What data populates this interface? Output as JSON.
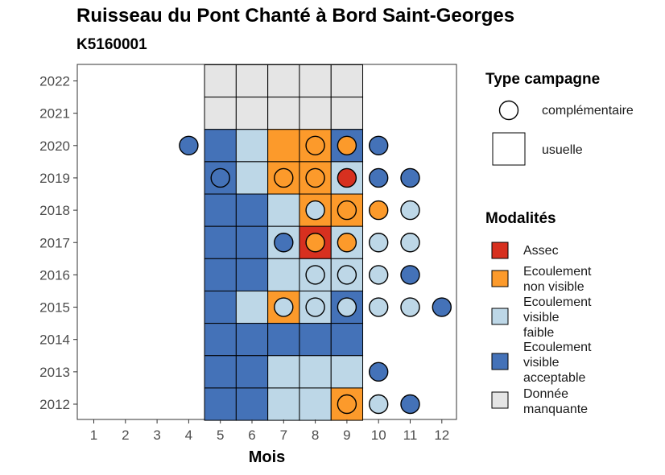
{
  "chart_data": {
    "type": "heatmap",
    "title": "Ruisseau du Pont Chanté à Bord Saint-Georges",
    "subtitle": "K5160001",
    "xlabel": "Mois",
    "ylabel": "",
    "x_ticks": [
      "1",
      "2",
      "3",
      "4",
      "5",
      "6",
      "7",
      "8",
      "9",
      "10",
      "11",
      "12"
    ],
    "y_ticks": [
      "2012",
      "2013",
      "2014",
      "2015",
      "2016",
      "2017",
      "2018",
      "2019",
      "2020",
      "2021",
      "2022"
    ],
    "colors": {
      "assec": "#d7301f",
      "nonvisible": "#fc9a2b",
      "faible": "#bdd7e7",
      "acceptable": "#4472b8",
      "manquante": "#e5e5e5"
    },
    "usuelle": [
      {
        "year": 2022,
        "month": 5,
        "modalite": "manquante"
      },
      {
        "year": 2022,
        "month": 6,
        "modalite": "manquante"
      },
      {
        "year": 2022,
        "month": 7,
        "modalite": "manquante"
      },
      {
        "year": 2022,
        "month": 8,
        "modalite": "manquante"
      },
      {
        "year": 2022,
        "month": 9,
        "modalite": "manquante"
      },
      {
        "year": 2021,
        "month": 5,
        "modalite": "manquante"
      },
      {
        "year": 2021,
        "month": 6,
        "modalite": "manquante"
      },
      {
        "year": 2021,
        "month": 7,
        "modalite": "manquante"
      },
      {
        "year": 2021,
        "month": 8,
        "modalite": "manquante"
      },
      {
        "year": 2021,
        "month": 9,
        "modalite": "manquante"
      },
      {
        "year": 2020,
        "month": 5,
        "modalite": "acceptable"
      },
      {
        "year": 2020,
        "month": 6,
        "modalite": "faible"
      },
      {
        "year": 2020,
        "month": 7,
        "modalite": "nonvisible"
      },
      {
        "year": 2020,
        "month": 8,
        "modalite": "nonvisible"
      },
      {
        "year": 2020,
        "month": 9,
        "modalite": "acceptable"
      },
      {
        "year": 2019,
        "month": 5,
        "modalite": "acceptable"
      },
      {
        "year": 2019,
        "month": 6,
        "modalite": "faible"
      },
      {
        "year": 2019,
        "month": 7,
        "modalite": "nonvisible"
      },
      {
        "year": 2019,
        "month": 8,
        "modalite": "nonvisible"
      },
      {
        "year": 2019,
        "month": 9,
        "modalite": "faible"
      },
      {
        "year": 2018,
        "month": 5,
        "modalite": "acceptable"
      },
      {
        "year": 2018,
        "month": 6,
        "modalite": "acceptable"
      },
      {
        "year": 2018,
        "month": 7,
        "modalite": "faible"
      },
      {
        "year": 2018,
        "month": 8,
        "modalite": "nonvisible"
      },
      {
        "year": 2018,
        "month": 9,
        "modalite": "nonvisible"
      },
      {
        "year": 2017,
        "month": 5,
        "modalite": "acceptable"
      },
      {
        "year": 2017,
        "month": 6,
        "modalite": "acceptable"
      },
      {
        "year": 2017,
        "month": 7,
        "modalite": "faible"
      },
      {
        "year": 2017,
        "month": 8,
        "modalite": "assec"
      },
      {
        "year": 2017,
        "month": 9,
        "modalite": "faible"
      },
      {
        "year": 2016,
        "month": 5,
        "modalite": "acceptable"
      },
      {
        "year": 2016,
        "month": 6,
        "modalite": "acceptable"
      },
      {
        "year": 2016,
        "month": 7,
        "modalite": "faible"
      },
      {
        "year": 2016,
        "month": 8,
        "modalite": "faible"
      },
      {
        "year": 2016,
        "month": 9,
        "modalite": "faible"
      },
      {
        "year": 2015,
        "month": 5,
        "modalite": "acceptable"
      },
      {
        "year": 2015,
        "month": 6,
        "modalite": "faible"
      },
      {
        "year": 2015,
        "month": 7,
        "modalite": "nonvisible"
      },
      {
        "year": 2015,
        "month": 8,
        "modalite": "faible"
      },
      {
        "year": 2015,
        "month": 9,
        "modalite": "acceptable"
      },
      {
        "year": 2014,
        "month": 5,
        "modalite": "acceptable"
      },
      {
        "year": 2014,
        "month": 6,
        "modalite": "acceptable"
      },
      {
        "year": 2014,
        "month": 7,
        "modalite": "acceptable"
      },
      {
        "year": 2014,
        "month": 8,
        "modalite": "acceptable"
      },
      {
        "year": 2014,
        "month": 9,
        "modalite": "acceptable"
      },
      {
        "year": 2013,
        "month": 5,
        "modalite": "acceptable"
      },
      {
        "year": 2013,
        "month": 6,
        "modalite": "acceptable"
      },
      {
        "year": 2013,
        "month": 7,
        "modalite": "faible"
      },
      {
        "year": 2013,
        "month": 8,
        "modalite": "faible"
      },
      {
        "year": 2013,
        "month": 9,
        "modalite": "faible"
      },
      {
        "year": 2012,
        "month": 5,
        "modalite": "acceptable"
      },
      {
        "year": 2012,
        "month": 6,
        "modalite": "acceptable"
      },
      {
        "year": 2012,
        "month": 7,
        "modalite": "faible"
      },
      {
        "year": 2012,
        "month": 8,
        "modalite": "faible"
      },
      {
        "year": 2012,
        "month": 9,
        "modalite": "nonvisible"
      }
    ],
    "complementaire": [
      {
        "year": 2020,
        "month": 4,
        "modalite": "acceptable"
      },
      {
        "year": 2020,
        "month": 8,
        "modalite": "nonvisible"
      },
      {
        "year": 2020,
        "month": 9,
        "modalite": "nonvisible"
      },
      {
        "year": 2020,
        "month": 10,
        "modalite": "acceptable"
      },
      {
        "year": 2019,
        "month": 5,
        "modalite": "acceptable"
      },
      {
        "year": 2019,
        "month": 7,
        "modalite": "nonvisible"
      },
      {
        "year": 2019,
        "month": 8,
        "modalite": "nonvisible"
      },
      {
        "year": 2019,
        "month": 9,
        "modalite": "assec"
      },
      {
        "year": 2019,
        "month": 10,
        "modalite": "acceptable"
      },
      {
        "year": 2019,
        "month": 11,
        "modalite": "acceptable"
      },
      {
        "year": 2018,
        "month": 8,
        "modalite": "faible"
      },
      {
        "year": 2018,
        "month": 9,
        "modalite": "nonvisible"
      },
      {
        "year": 2018,
        "month": 10,
        "modalite": "nonvisible"
      },
      {
        "year": 2018,
        "month": 11,
        "modalite": "faible"
      },
      {
        "year": 2017,
        "month": 7,
        "modalite": "acceptable"
      },
      {
        "year": 2017,
        "month": 8,
        "modalite": "nonvisible"
      },
      {
        "year": 2017,
        "month": 9,
        "modalite": "nonvisible"
      },
      {
        "year": 2017,
        "month": 10,
        "modalite": "faible"
      },
      {
        "year": 2017,
        "month": 11,
        "modalite": "faible"
      },
      {
        "year": 2016,
        "month": 8,
        "modalite": "faible"
      },
      {
        "year": 2016,
        "month": 9,
        "modalite": "faible"
      },
      {
        "year": 2016,
        "month": 10,
        "modalite": "faible"
      },
      {
        "year": 2016,
        "month": 11,
        "modalite": "acceptable"
      },
      {
        "year": 2015,
        "month": 7,
        "modalite": "faible"
      },
      {
        "year": 2015,
        "month": 8,
        "modalite": "faible"
      },
      {
        "year": 2015,
        "month": 9,
        "modalite": "faible"
      },
      {
        "year": 2015,
        "month": 10,
        "modalite": "faible"
      },
      {
        "year": 2015,
        "month": 11,
        "modalite": "faible"
      },
      {
        "year": 2015,
        "month": 12,
        "modalite": "acceptable"
      },
      {
        "year": 2013,
        "month": 10,
        "modalite": "acceptable"
      },
      {
        "year": 2012,
        "month": 9,
        "modalite": "nonvisible"
      },
      {
        "year": 2012,
        "month": 10,
        "modalite": "faible"
      },
      {
        "year": 2012,
        "month": 11,
        "modalite": "acceptable"
      }
    ],
    "legend": {
      "type_title": "Type campagne",
      "type_items": [
        "complémentaire",
        "usuelle"
      ],
      "mod_title": "Modalités",
      "mod_items": [
        {
          "key": "assec",
          "label": "Assec"
        },
        {
          "key": "nonvisible",
          "label": "Ecoulement non visible"
        },
        {
          "key": "faible",
          "label": "Ecoulement visible faible"
        },
        {
          "key": "acceptable",
          "label": "Ecoulement visible acceptable"
        },
        {
          "key": "manquante",
          "label": "Donnée manquante"
        }
      ]
    }
  }
}
